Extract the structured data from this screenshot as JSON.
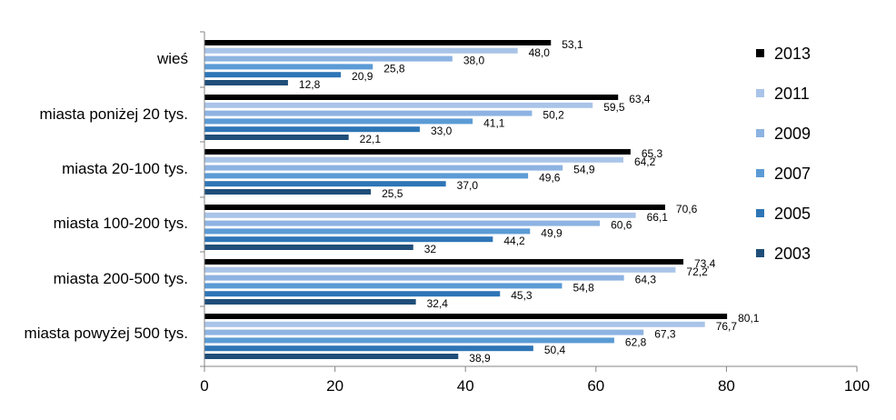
{
  "chart_data": {
    "type": "bar",
    "orientation": "horizontal",
    "categories": [
      "wieś",
      "miasta poniżej 20 tys.",
      "miasta 20-100 tys.",
      "miasta 100-200 tys.",
      "miasta 200-500 tys.",
      "miasta powyżej 500 tys."
    ],
    "series": [
      {
        "name": "2013",
        "color": "#000000",
        "values": [
          53.1,
          63.4,
          65.3,
          70.6,
          73.4,
          80.1
        ],
        "labels": [
          "53,1",
          "63,4",
          "65,3",
          "70,6",
          "73,4",
          "80,1"
        ]
      },
      {
        "name": "2011",
        "color": "#a9c4e8",
        "values": [
          48.0,
          59.5,
          64.2,
          66.1,
          72.2,
          76.7
        ],
        "labels": [
          "48,0",
          "59,5",
          "64,2",
          "66,1",
          "72,2",
          "76,7"
        ]
      },
      {
        "name": "2009",
        "color": "#8db3e2",
        "values": [
          38.0,
          50.2,
          54.9,
          60.6,
          64.3,
          67.3
        ],
        "labels": [
          "38,0",
          "50,2",
          "54,9",
          "60,6",
          "64,3",
          "67,3"
        ]
      },
      {
        "name": "2007",
        "color": "#5b9bd5",
        "values": [
          25.8,
          41.1,
          49.6,
          49.9,
          54.8,
          62.8
        ],
        "labels": [
          "25,8",
          "41,1",
          "49,6",
          "49,9",
          "54,8",
          "62,8"
        ]
      },
      {
        "name": "2005",
        "color": "#2e75b6",
        "values": [
          20.9,
          33.0,
          37.0,
          44.2,
          45.3,
          50.4
        ],
        "labels": [
          "20,9",
          "33,0",
          "37,0",
          "44,2",
          "45,3",
          "50,4"
        ]
      },
      {
        "name": "2003",
        "color": "#1f4e79",
        "values": [
          12.8,
          22.1,
          25.5,
          32,
          32.4,
          38.9
        ],
        "labels": [
          "12,8",
          "22,1",
          "25,5",
          "32",
          "32,4",
          "38,9"
        ]
      }
    ],
    "x_ticks": [
      "0",
      "20",
      "40",
      "60",
      "80",
      "100"
    ],
    "xlim": [
      0,
      100
    ],
    "grid": false,
    "legend_position": "right",
    "title": "",
    "xlabel": "",
    "ylabel": ""
  }
}
